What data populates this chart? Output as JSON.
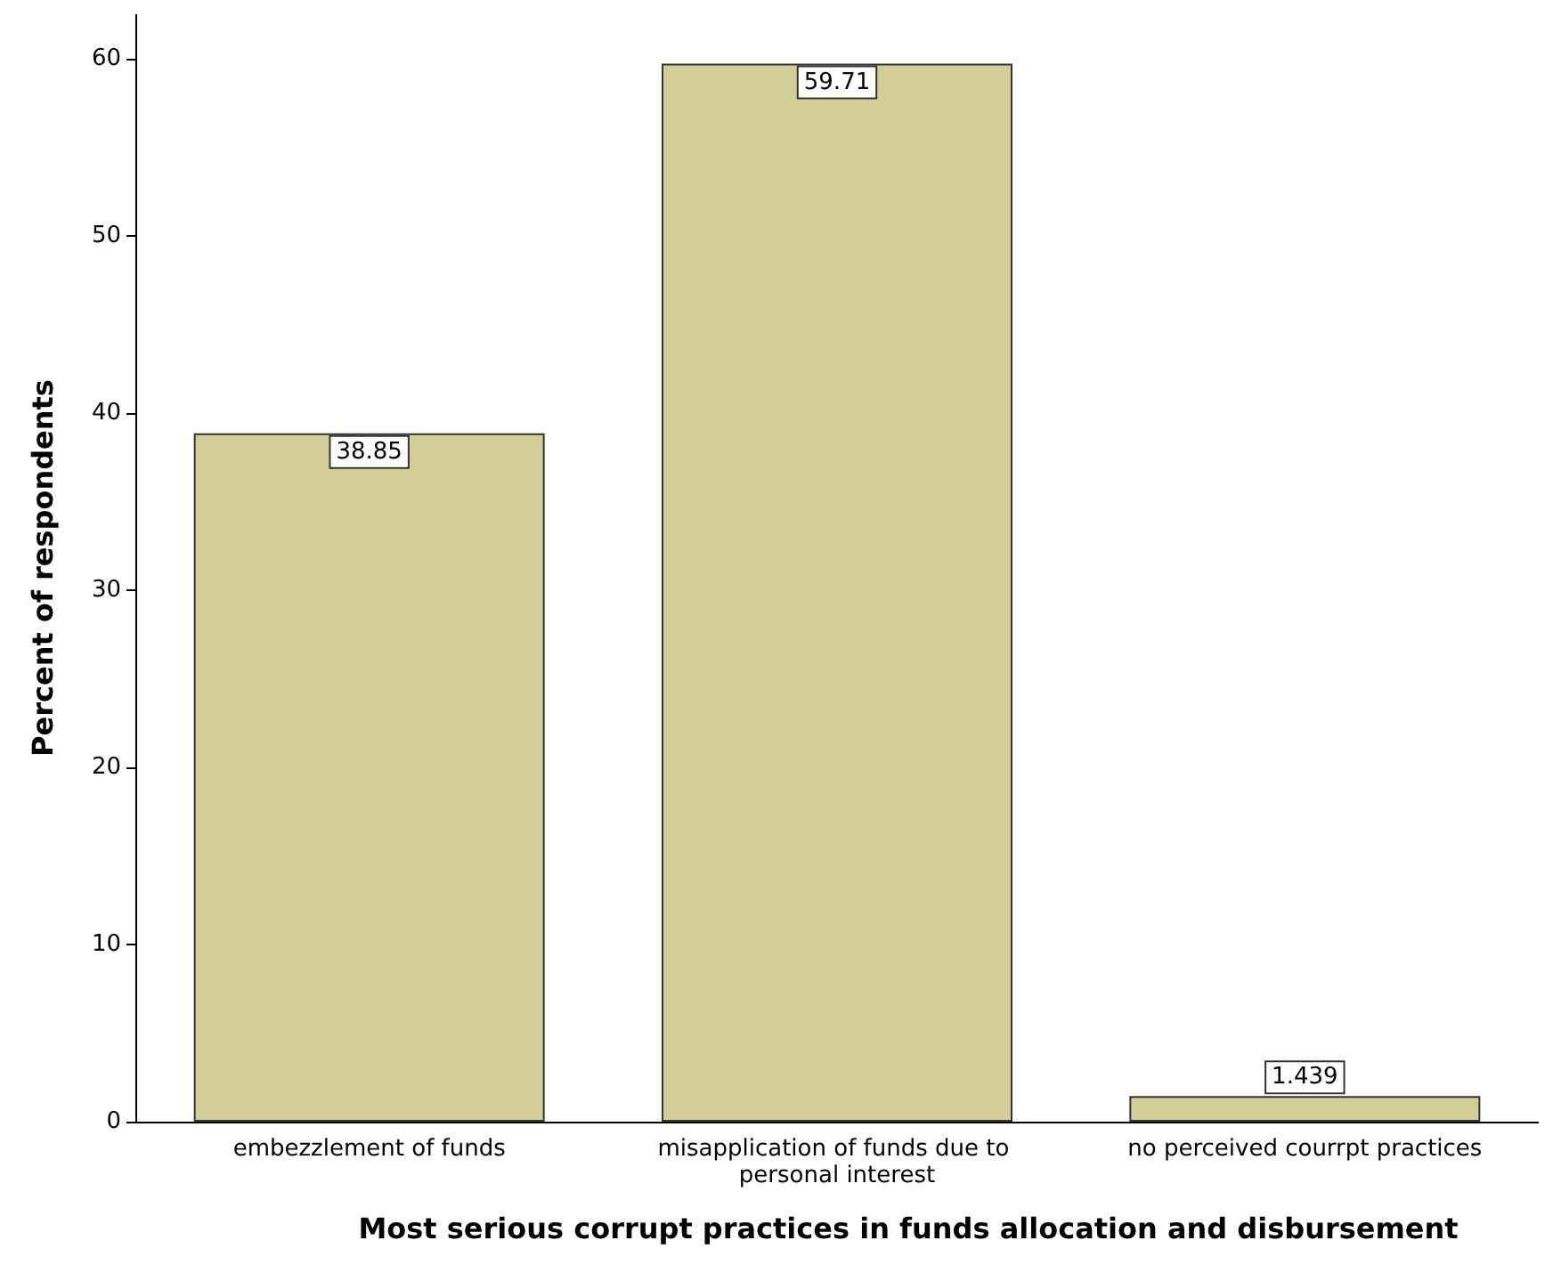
{
  "chart_data": {
    "type": "bar",
    "xlabel": "Most serious corrupt practices in funds allocation and disbursement",
    "ylabel": "Percent of respondents",
    "categories": [
      "embezzlement of funds",
      "misapplication of funds due to personal interest",
      "no perceived courrpt practices"
    ],
    "values": [
      38.85,
      59.71,
      1.439
    ],
    "color": "#d3ce98",
    "ylim": [
      0,
      62.5
    ],
    "yticks": [
      0,
      10,
      20,
      30,
      40,
      50,
      60
    ],
    "grid": false,
    "data_labels": true
  }
}
